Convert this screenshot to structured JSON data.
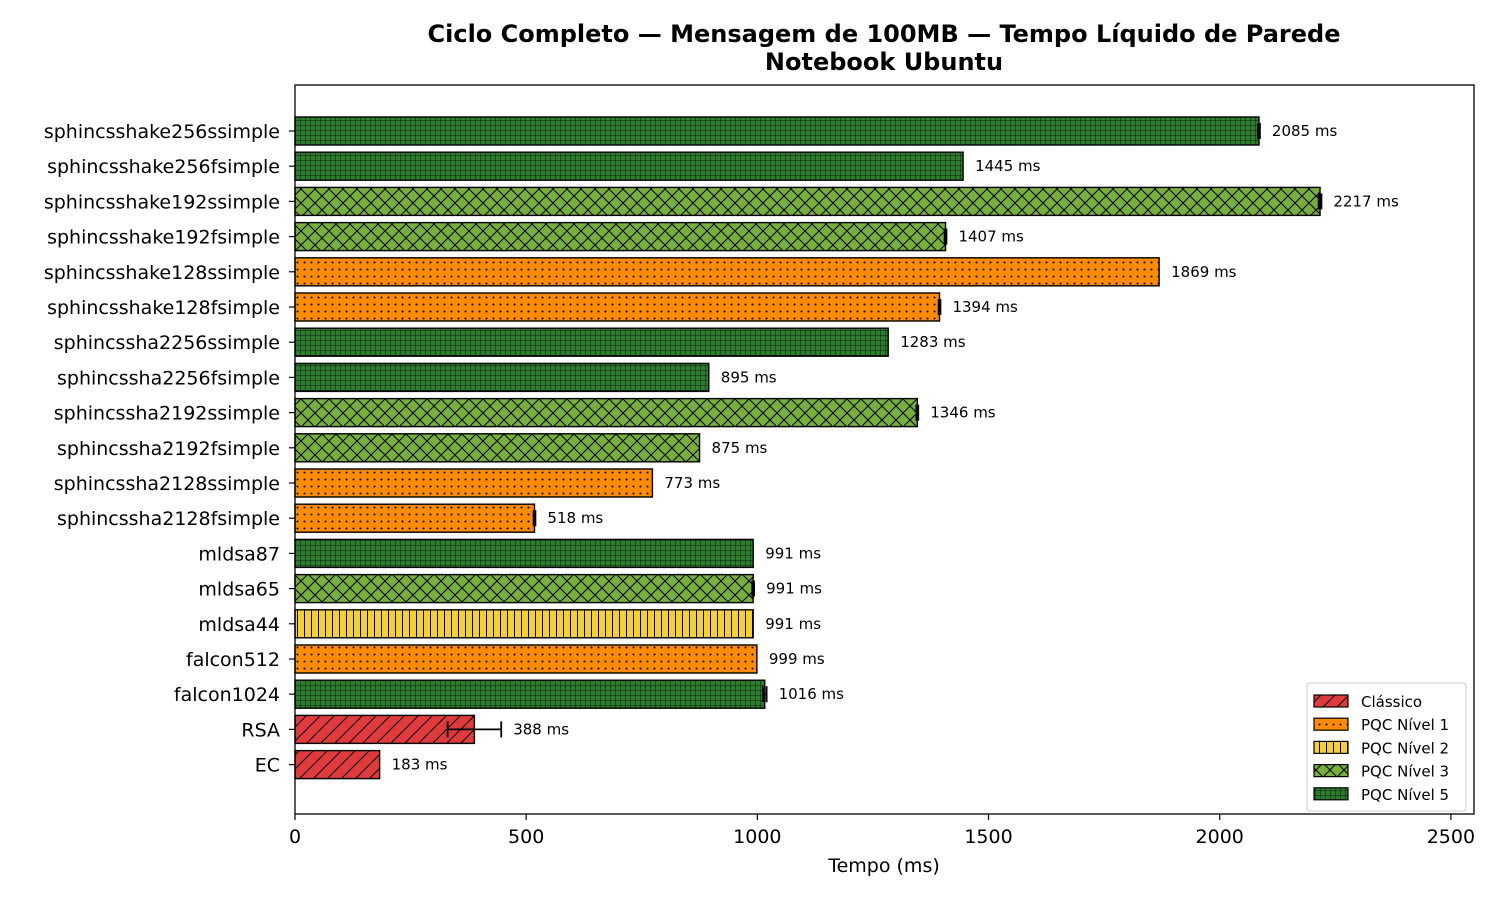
{
  "chart_data": {
    "type": "bar",
    "orientation": "horizontal",
    "title": "Ciclo Completo — Mensagem de 100MB — Tempo Líquido de Parede",
    "subtitle": "Notebook Ubuntu",
    "xlabel": "Tempo (ms)",
    "ylabel": "",
    "xlim": [
      0,
      2550
    ],
    "xticks": [
      0,
      500,
      1000,
      1500,
      2000,
      2500
    ],
    "value_suffix": " ms",
    "grid": false,
    "legend_position": "bottom-right",
    "categories": [
      {
        "name": "sphincsshake256ssimple",
        "value": 2085,
        "group": "PQC Nível 5",
        "error": 2
      },
      {
        "name": "sphincsshake256fsimple",
        "value": 1445,
        "group": "PQC Nível 5",
        "error": 0
      },
      {
        "name": "sphincsshake192ssimple",
        "value": 2217,
        "group": "PQC Nível 3",
        "error": 3
      },
      {
        "name": "sphincsshake192fsimple",
        "value": 1407,
        "group": "PQC Nível 3",
        "error": 2
      },
      {
        "name": "sphincsshake128ssimple",
        "value": 1869,
        "group": "PQC Nível 1",
        "error": 0
      },
      {
        "name": "sphincsshake128fsimple",
        "value": 1394,
        "group": "PQC Nível 1",
        "error": 2
      },
      {
        "name": "sphincssha2256ssimple",
        "value": 1283,
        "group": "PQC Nível 5",
        "error": 0
      },
      {
        "name": "sphincssha2256fsimple",
        "value": 895,
        "group": "PQC Nível 5",
        "error": 0
      },
      {
        "name": "sphincssha2192ssimple",
        "value": 1346,
        "group": "PQC Nível 3",
        "error": 2
      },
      {
        "name": "sphincssha2192fsimple",
        "value": 875,
        "group": "PQC Nível 3",
        "error": 0
      },
      {
        "name": "sphincssha2128ssimple",
        "value": 773,
        "group": "PQC Nível 1",
        "error": 0
      },
      {
        "name": "sphincssha2128fsimple",
        "value": 518,
        "group": "PQC Nível 1",
        "error": 2
      },
      {
        "name": "mldsa87",
        "value": 991,
        "group": "PQC Nível 5",
        "error": 0
      },
      {
        "name": "mldsa65",
        "value": 991,
        "group": "PQC Nível 3",
        "error": 2
      },
      {
        "name": "mldsa44",
        "value": 991,
        "group": "PQC Nível 2",
        "error": 0
      },
      {
        "name": "falcon512",
        "value": 999,
        "group": "PQC Nível 1",
        "error": 0
      },
      {
        "name": "falcon1024",
        "value": 1016,
        "group": "PQC Nível 5",
        "error": 4
      },
      {
        "name": "RSA",
        "value": 388,
        "group": "Clássico",
        "error": 58
      },
      {
        "name": "EC",
        "value": 183,
        "group": "Clássico",
        "error": 0
      }
    ],
    "legend": [
      {
        "name": "Clássico",
        "color": "#e03a3a",
        "pattern": "diagonal"
      },
      {
        "name": "PQC Nível 1",
        "color": "#ff8c00",
        "pattern": "dots"
      },
      {
        "name": "PQC Nível 2",
        "color": "#f5d033",
        "pattern": "vertical"
      },
      {
        "name": "PQC Nível 3",
        "color": "#78ae3c",
        "pattern": "crosshatch"
      },
      {
        "name": "PQC Nível 5",
        "color": "#2e7d2e",
        "pattern": "grid"
      }
    ]
  }
}
